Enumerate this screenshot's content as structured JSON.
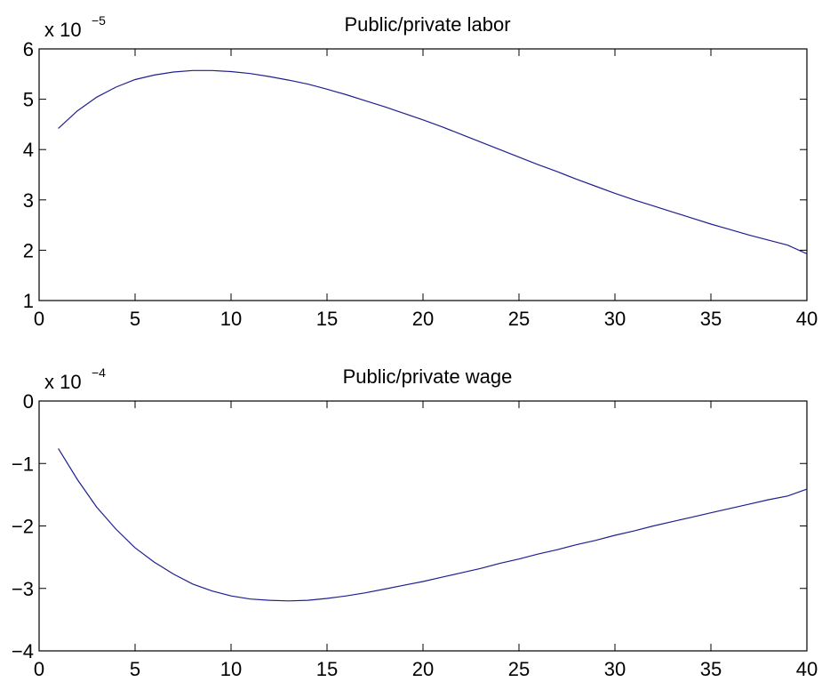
{
  "chart_data": [
    {
      "type": "line",
      "title": "Public/private labor",
      "scale_label": {
        "base": "x 10",
        "exponent": "−5"
      },
      "xlim": [
        0,
        40
      ],
      "ylim": [
        1,
        6
      ],
      "xticks": [
        0,
        5,
        10,
        15,
        20,
        25,
        30,
        35,
        40
      ],
      "yticks": [
        1,
        2,
        3,
        4,
        5,
        6
      ],
      "xticklabels": [
        "0",
        "5",
        "10",
        "15",
        "20",
        "25",
        "30",
        "35",
        "40"
      ],
      "yticklabels": [
        "1",
        "2",
        "3",
        "4",
        "5",
        "6"
      ],
      "grid": false,
      "color": "#1f1f8f",
      "x": [
        1,
        2,
        3,
        4,
        5,
        6,
        7,
        8,
        9,
        10,
        11,
        12,
        13,
        14,
        15,
        16,
        17,
        18,
        19,
        20,
        21,
        22,
        23,
        24,
        25,
        26,
        27,
        28,
        29,
        30,
        31,
        32,
        33,
        34,
        35,
        36,
        37,
        38,
        39,
        40
      ],
      "y": [
        4.42,
        4.77,
        5.04,
        5.24,
        5.39,
        5.48,
        5.54,
        5.57,
        5.57,
        5.55,
        5.51,
        5.45,
        5.38,
        5.3,
        5.2,
        5.09,
        4.97,
        4.85,
        4.72,
        4.59,
        4.45,
        4.3,
        4.15,
        4.0,
        3.85,
        3.7,
        3.56,
        3.41,
        3.27,
        3.13,
        3.0,
        2.88,
        2.76,
        2.64,
        2.52,
        2.41,
        2.3,
        2.2,
        2.1,
        1.93
      ]
    },
    {
      "type": "line",
      "title": "Public/private wage",
      "scale_label": {
        "base": "x 10",
        "exponent": "−4"
      },
      "xlim": [
        0,
        40
      ],
      "ylim": [
        -4,
        0
      ],
      "xticks": [
        0,
        5,
        10,
        15,
        20,
        25,
        30,
        35,
        40
      ],
      "yticks": [
        -4,
        -3,
        -2,
        -1,
        0
      ],
      "xticklabels": [
        "0",
        "5",
        "10",
        "15",
        "20",
        "25",
        "30",
        "35",
        "40"
      ],
      "yticklabels": [
        "−4",
        "−3",
        "−2",
        "−1",
        "0"
      ],
      "grid": false,
      "color": "#1f1f8f",
      "x": [
        1,
        2,
        3,
        4,
        5,
        6,
        7,
        8,
        9,
        10,
        11,
        12,
        13,
        14,
        15,
        16,
        17,
        18,
        19,
        20,
        21,
        22,
        23,
        24,
        25,
        26,
        27,
        28,
        29,
        30,
        31,
        32,
        33,
        34,
        35,
        36,
        37,
        38,
        39,
        40
      ],
      "y": [
        -0.76,
        -1.26,
        -1.7,
        -2.05,
        -2.35,
        -2.58,
        -2.77,
        -2.93,
        -3.04,
        -3.12,
        -3.17,
        -3.19,
        -3.2,
        -3.19,
        -3.16,
        -3.12,
        -3.07,
        -3.01,
        -2.95,
        -2.89,
        -2.82,
        -2.75,
        -2.68,
        -2.6,
        -2.53,
        -2.45,
        -2.38,
        -2.3,
        -2.23,
        -2.15,
        -2.08,
        -2.0,
        -1.93,
        -1.86,
        -1.79,
        -1.72,
        -1.65,
        -1.58,
        -1.52,
        -1.41
      ]
    }
  ]
}
